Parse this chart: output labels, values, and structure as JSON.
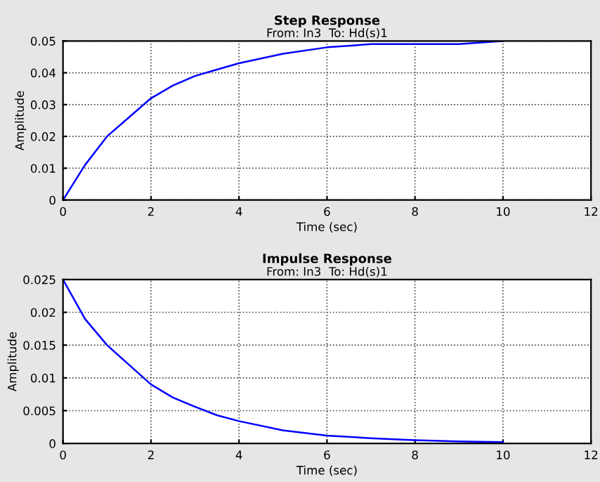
{
  "chart_data": [
    {
      "type": "line",
      "title": "Step Response",
      "subtitle": "From: In3  To: Hd(s)1",
      "xlabel": "Time (sec)",
      "ylabel": "Amplitude",
      "x": [
        0,
        0.5,
        1,
        1.5,
        2,
        2.5,
        3,
        3.5,
        4,
        5,
        6,
        7,
        8,
        9,
        10
      ],
      "series": [
        {
          "color": "#0000ff",
          "values": [
            0,
            0.011,
            0.02,
            0.026,
            0.032,
            0.036,
            0.039,
            0.041,
            0.043,
            0.046,
            0.048,
            0.049,
            0.049,
            0.049,
            0.05
          ]
        }
      ],
      "xlim": [
        0,
        12
      ],
      "xticks": [
        0,
        2,
        4,
        6,
        8,
        10,
        12
      ],
      "ylim": [
        0,
        0.05
      ],
      "yticks": [
        0,
        0.01,
        0.02,
        0.03,
        0.04,
        0.05
      ],
      "grid": true,
      "line_style": "solid"
    },
    {
      "type": "line",
      "title": "Impulse Response",
      "subtitle": "From: In3  To: Hd(s)1",
      "xlabel": "Time (sec)",
      "ylabel": "Amplitude",
      "x": [
        0,
        0.5,
        1,
        1.5,
        2,
        2.5,
        3,
        3.5,
        4,
        5,
        6,
        7,
        8,
        9,
        10
      ],
      "series": [
        {
          "color": "#0000ff",
          "values": [
            0.025,
            0.019,
            0.015,
            0.012,
            0.009,
            0.007,
            0.0056,
            0.0043,
            0.0034,
            0.002,
            0.0012,
            0.0008,
            0.0005,
            0.0003,
            0.0002
          ]
        }
      ],
      "xlim": [
        0,
        12
      ],
      "xticks": [
        0,
        2,
        4,
        6,
        8,
        10,
        12
      ],
      "ylim": [
        0,
        0.025
      ],
      "yticks": [
        0,
        0.005,
        0.01,
        0.015,
        0.02,
        0.025
      ],
      "grid": true,
      "line_style": "solid"
    }
  ]
}
